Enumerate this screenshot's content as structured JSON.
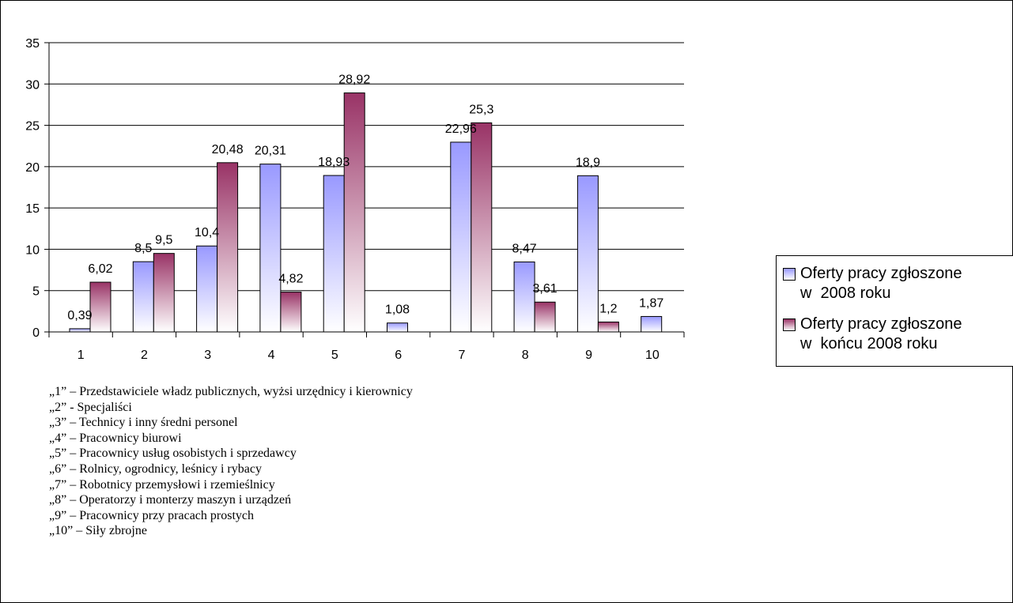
{
  "chart_data": {
    "type": "bar",
    "title": "",
    "xlabel": "",
    "ylabel": "",
    "categories": [
      "1",
      "2",
      "3",
      "4",
      "5",
      "6",
      "7",
      "8",
      "9",
      "10"
    ],
    "ylim": [
      0,
      35
    ],
    "yticks": [
      "0",
      "5",
      "10",
      "15",
      "20",
      "25",
      "30",
      "35"
    ],
    "grid": true,
    "legend_position": "right",
    "series": [
      {
        "name": "Oferty pracy zgłoszone w 2008 roku",
        "color_top": "#9999ff",
        "color_bottom": "#ffffff",
        "values": [
          0.39,
          8.5,
          10.4,
          20.31,
          18.93,
          1.08,
          22.96,
          8.47,
          18.9,
          1.87
        ],
        "labels": [
          "0,39",
          "8,5",
          "10,4",
          "20,31",
          "18,93",
          "1,08",
          "22,96",
          "8,47",
          "18,9",
          "1,87"
        ]
      },
      {
        "name": "Oferty pracy zgłoszone w końcu 2008 roku",
        "color_top": "#993366",
        "color_bottom": "#ffffff",
        "values": [
          6.02,
          9.5,
          20.48,
          4.82,
          28.92,
          null,
          25.3,
          3.61,
          1.2,
          null
        ],
        "labels": [
          "6,02",
          "9,5",
          "20,48",
          "4,82",
          "28,92",
          "",
          "25,3",
          "3,61",
          "1,2",
          ""
        ]
      }
    ]
  },
  "legend": {
    "entry_1_line_1": "Oferty pracy zgłoszone",
    "entry_1_line_2": "w  2008 roku",
    "entry_2_line_1": "Oferty pracy zgłoszone",
    "entry_2_line_2": "w  końcu 2008 roku"
  },
  "notes": [
    "„1” – Przedstawiciele władz publicznych, wyżsi urzędnicy i kierownicy",
    "„2” - Specjaliści",
    "„3” – Technicy i inny średni personel",
    "„4” – Pracownicy biurowi",
    "„5” – Pracownicy usług osobistych i sprzedawcy",
    "„6” – Rolnicy, ogrodnicy, leśnicy i rybacy",
    "„7” – Robotnicy przemysłowi i rzemieślnicy",
    "„8” – Operatorzy i monterzy maszyn i urządzeń",
    "„9” – Pracownicy przy pracach prostych",
    "„10” – Siły zbrojne"
  ]
}
